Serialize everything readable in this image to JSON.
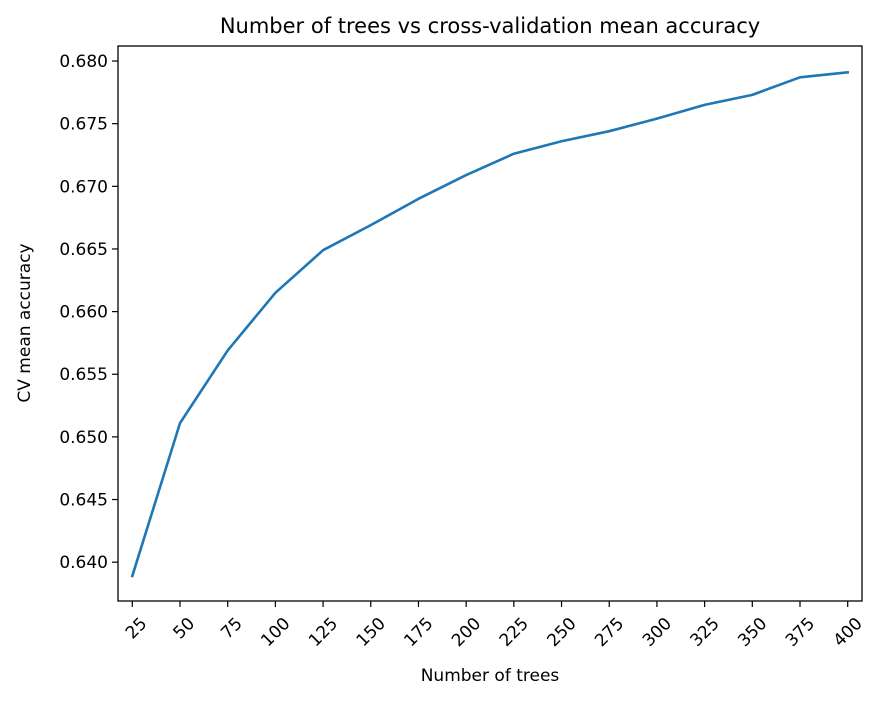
{
  "chart_data": {
    "type": "line",
    "title": "Number of trees vs cross-validation mean accuracy",
    "xlabel": "Number of trees",
    "ylabel": "CV mean accuracy",
    "x": [
      25,
      50,
      75,
      100,
      125,
      150,
      175,
      200,
      225,
      250,
      275,
      300,
      325,
      350,
      375,
      400
    ],
    "x_tick_labels": [
      "25",
      "50",
      "75",
      "100",
      "125",
      "150",
      "175",
      "200",
      "225",
      "250",
      "275",
      "300",
      "325",
      "350",
      "375",
      "400"
    ],
    "series": [
      {
        "values": [
          0.6389,
          0.6511,
          0.6569,
          0.6615,
          0.6649,
          0.6669,
          0.669,
          0.6709,
          0.6726,
          0.6736,
          0.6744,
          0.6754,
          0.6765,
          0.6773,
          0.6787,
          0.6791
        ]
      }
    ],
    "y_ticks": [
      0.64,
      0.645,
      0.65,
      0.655,
      0.66,
      0.665,
      0.67,
      0.675,
      0.68
    ],
    "y_tick_labels": [
      "0.640",
      "0.645",
      "0.650",
      "0.655",
      "0.660",
      "0.665",
      "0.670",
      "0.675",
      "0.680"
    ],
    "xlim": [
      17.5,
      407.5
    ],
    "ylim": [
      0.6369,
      0.6812
    ],
    "grid": false,
    "legend": "none",
    "colors": {
      "line": "#1f77b4",
      "axes": "#000000",
      "background": "#ffffff"
    }
  }
}
